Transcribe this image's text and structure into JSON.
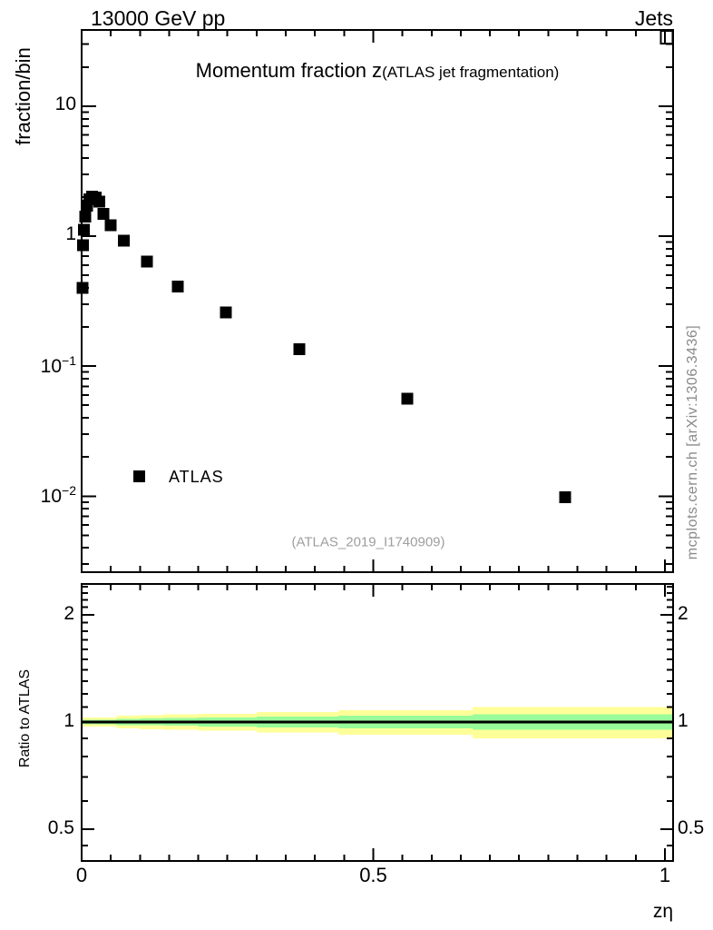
{
  "header": {
    "left_label": "13000 GeV pp",
    "right_label": "Jets"
  },
  "main_plot": {
    "title": "Momentum fraction z",
    "title_suffix": "(ATLAS jet fragmentation)",
    "y_axis_label": "fraction/bin",
    "legend_label": "ATLAS",
    "watermark": "(ATLAS_2019_I1740909)"
  },
  "ratio_plot": {
    "y_axis_label": "Ratio to ATLAS"
  },
  "x_axis_label": "zη",
  "side_note": "mcplots.cern.ch [arXiv:1306.3436]",
  "colors": {
    "marker": "#000000",
    "frame": "#000000",
    "band_yellow": "#FFFF99",
    "band_green": "#99FB99",
    "ratio_line": "#000000",
    "watermark": "#9E9E9E",
    "side_note": "#8A8A8A"
  },
  "chart_data": {
    "type": "scatter",
    "title": "Momentum fraction z (ATLAS jet fragmentation)",
    "xlabel": "zη",
    "ylabel": "fraction/bin",
    "x_scale": "linear",
    "y_scale": "log",
    "xlim": [
      0,
      1.014
    ],
    "ylim": [
      0.0026,
      38.6
    ],
    "grid": false,
    "legend_position": "inside-left",
    "x_ticks": [
      {
        "label": "0",
        "v": 0
      },
      {
        "label": "0.5",
        "v": 0.5
      },
      {
        "label": "1",
        "v": 1
      }
    ],
    "x_minor_step": 0.05,
    "y_ticks": [
      {
        "base": "10",
        "sup": "",
        "v": 10
      },
      {
        "base": "1",
        "sup": "",
        "v": 1
      },
      {
        "base": "10",
        "sup": "−1",
        "v": 0.1
      },
      {
        "base": "10",
        "sup": "−2",
        "v": 0.01
      }
    ],
    "series": [
      {
        "name": "ATLAS",
        "marker": "filled_square",
        "color": "#000000",
        "x": [
          0.0015,
          0.0025,
          0.004,
          0.006,
          0.009,
          0.013,
          0.018,
          0.024,
          0.03,
          0.037,
          0.05,
          0.072,
          0.112,
          0.165,
          0.247,
          0.373,
          0.558,
          0.829
        ],
        "y": [
          0.4,
          0.85,
          1.12,
          1.42,
          1.72,
          1.92,
          2.02,
          1.98,
          1.85,
          1.48,
          1.21,
          0.92,
          0.64,
          0.41,
          0.26,
          0.135,
          0.056,
          0.0098
        ]
      }
    ],
    "ratio_panel": {
      "ylabel": "Ratio to ATLAS",
      "y_scale": "log",
      "ylim": [
        0.407,
        2.44
      ],
      "center_line": 1.0,
      "y_ticks": [
        {
          "label": "2",
          "v": 2
        },
        {
          "label": "1",
          "v": 1
        },
        {
          "label": "0.5",
          "v": 0.5
        }
      ],
      "y_minor_ticks": [
        0.45,
        0.6,
        0.7,
        0.8,
        0.9,
        1.1,
        1.2,
        1.3,
        1.4,
        1.5,
        1.6,
        1.7,
        1.8,
        1.9,
        2.1,
        2.2,
        2.3,
        2.4
      ],
      "band_segments": [
        {
          "x0": 0.0,
          "x1": 0.06,
          "green": 0.015,
          "yellow": 0.03
        },
        {
          "x0": 0.06,
          "x1": 0.1,
          "green": 0.02,
          "yellow": 0.04
        },
        {
          "x0": 0.1,
          "x1": 0.14,
          "green": 0.022,
          "yellow": 0.045
        },
        {
          "x0": 0.14,
          "x1": 0.2,
          "green": 0.025,
          "yellow": 0.05
        },
        {
          "x0": 0.2,
          "x1": 0.3,
          "green": 0.03,
          "yellow": 0.055
        },
        {
          "x0": 0.3,
          "x1": 0.44,
          "green": 0.035,
          "yellow": 0.065
        },
        {
          "x0": 0.44,
          "x1": 0.67,
          "green": 0.04,
          "yellow": 0.08
        },
        {
          "x0": 0.67,
          "x1": 1.014,
          "green": 0.05,
          "yellow": 0.1
        }
      ]
    }
  }
}
